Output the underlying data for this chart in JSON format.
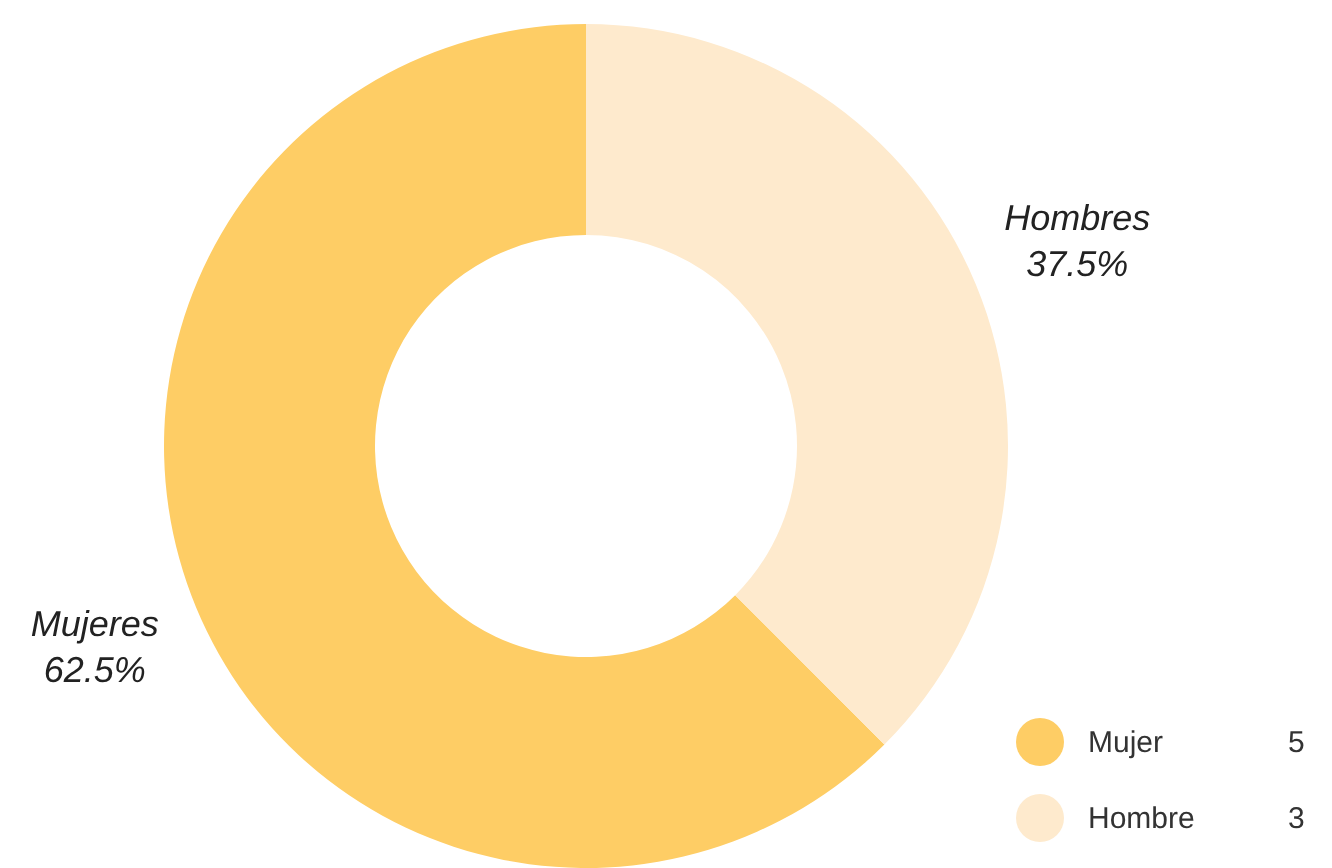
{
  "chart_data": {
    "type": "donut",
    "categories": [
      "Mujer",
      "Hombre"
    ],
    "values": [
      5,
      3
    ],
    "colors": [
      "#fecd65",
      "#feeacd"
    ],
    "value_labels": [
      "5",
      "3"
    ],
    "annotations": [
      {
        "text": "Mujeres\n62.5%",
        "x": "Mujer"
      },
      {
        "text": "Hombres\n37.5%",
        "x": "Hombre"
      }
    ],
    "legend": "bottom right"
  }
}
